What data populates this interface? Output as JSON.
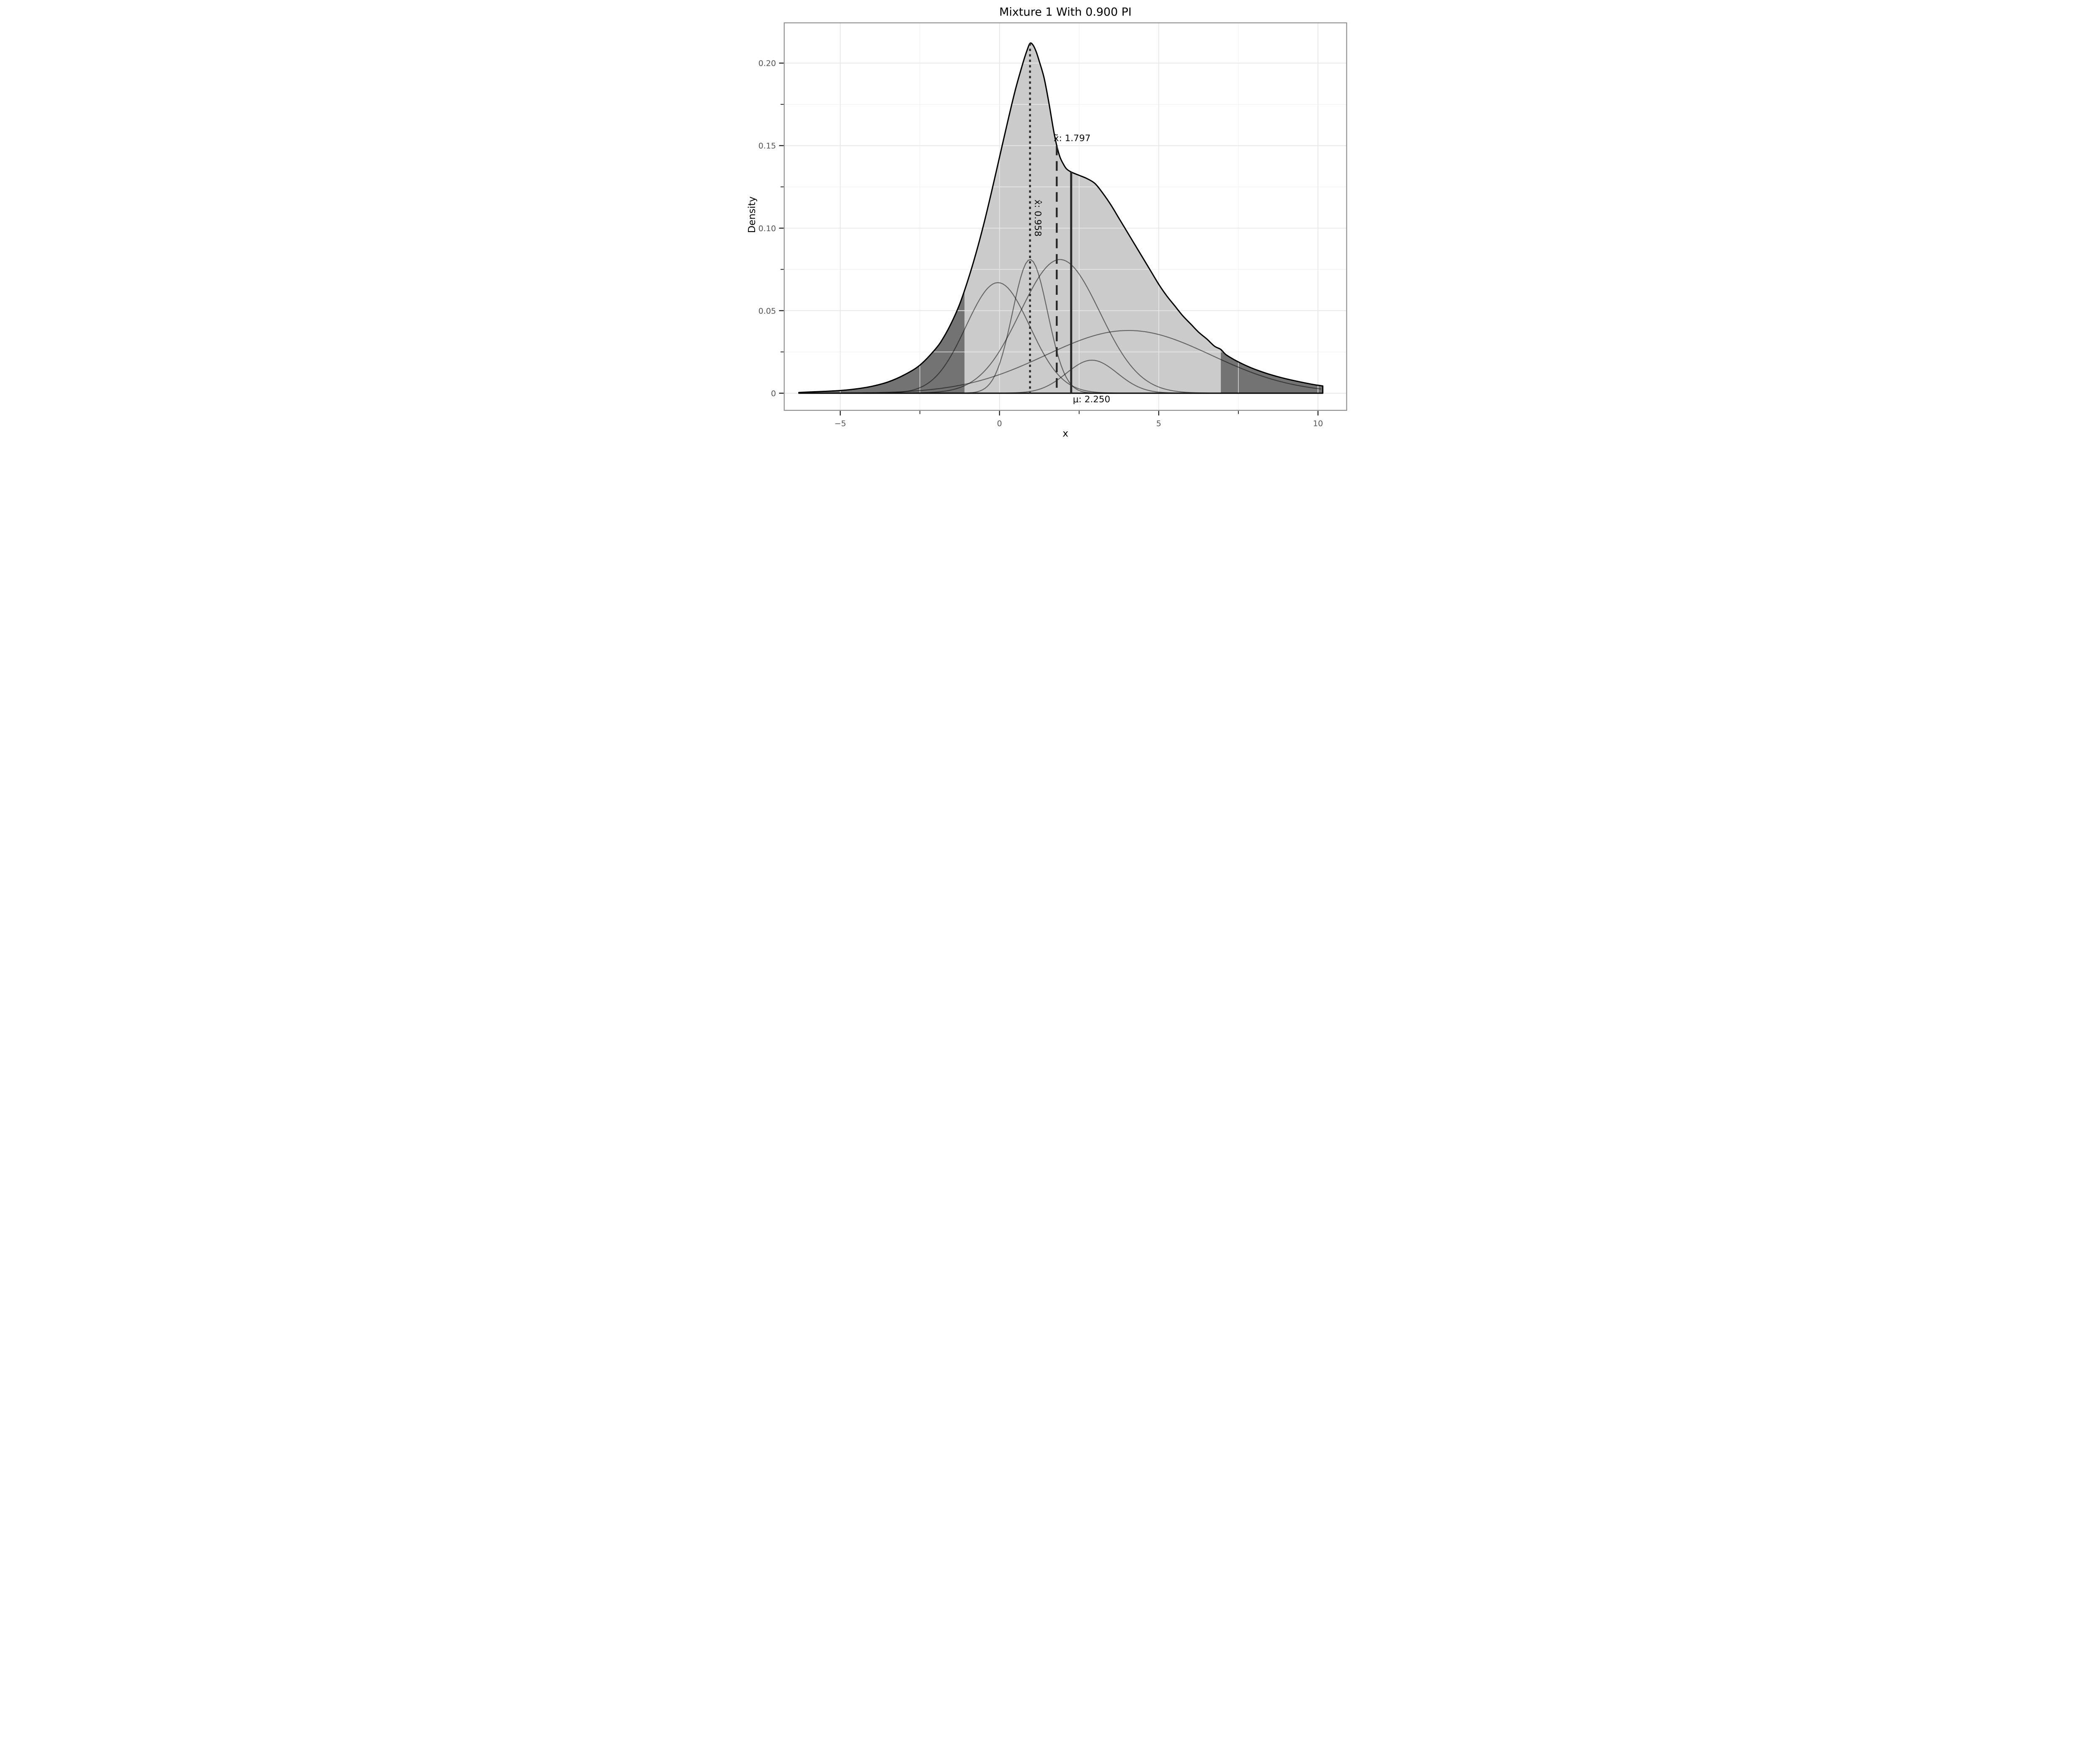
{
  "chart_data": {
    "type": "area",
    "title": "Mixture 1 With 0.900 PI",
    "xlabel": "x",
    "ylabel": "Density",
    "xlim": [
      -6.76,
      10.9
    ],
    "ylim": [
      -0.0104,
      0.2244
    ],
    "xticks": {
      "labels": [
        "−5",
        "0",
        "5",
        "10"
      ],
      "values": [
        -5,
        0,
        5,
        10
      ],
      "minor_values": [
        -2.5,
        2.5,
        7.5
      ]
    },
    "yticks": {
      "labels": [
        "0",
        "0.05",
        "0.10",
        "0.15",
        "0.20"
      ],
      "values": [
        0,
        0.05,
        0.1,
        0.15,
        0.2
      ],
      "minor_values": [
        0.025,
        0.075,
        0.125,
        0.175
      ]
    },
    "grid": {
      "major": true,
      "minor": true,
      "position": "above-fill"
    },
    "legend": "none",
    "density_curve": {
      "x": [
        -6.3,
        -6,
        -5.5,
        -5,
        -4.5,
        -4,
        -3.5,
        -3,
        -2.5,
        -2,
        -1.75,
        -1.5,
        -1.25,
        -1,
        -0.75,
        -0.5,
        -0.25,
        0,
        0.25,
        0.5,
        0.75,
        0.87,
        0.958,
        1.05,
        1.15,
        1.25,
        1.4,
        1.55,
        1.7,
        1.797,
        1.9,
        2,
        2.1,
        2.25,
        2.5,
        2.75,
        3,
        3.25,
        3.5,
        3.75,
        4,
        4.25,
        4.5,
        4.75,
        5,
        5.25,
        5.5,
        5.75,
        6,
        6.25,
        6.5,
        6.75,
        6.95,
        7.1,
        7.35,
        7.6,
        7.85,
        8.1,
        8.4,
        8.7,
        9,
        9.3,
        9.6,
        9.9,
        10.15
      ],
      "density": [
        0.0004,
        0.0007,
        0.0011,
        0.0016,
        0.0026,
        0.0042,
        0.0068,
        0.011,
        0.017,
        0.027,
        0.034,
        0.043,
        0.054,
        0.068,
        0.084,
        0.102,
        0.122,
        0.143,
        0.164,
        0.184,
        0.201,
        0.208,
        0.212,
        0.211,
        0.207,
        0.201,
        0.191,
        0.176,
        0.159,
        0.15,
        0.143,
        0.139,
        0.136,
        0.134,
        0.132,
        0.13,
        0.127,
        0.121,
        0.114,
        0.106,
        0.098,
        0.09,
        0.082,
        0.074,
        0.066,
        0.059,
        0.053,
        0.047,
        0.042,
        0.037,
        0.033,
        0.0285,
        0.0265,
        0.0235,
        0.0205,
        0.018,
        0.0158,
        0.0139,
        0.0119,
        0.0102,
        0.0087,
        0.0074,
        0.0062,
        0.0051,
        0.0044
      ]
    },
    "mixture_components": [
      {
        "mean": -0.05,
        "sd": 1.0,
        "peak_height": 0.067
      },
      {
        "mean": 0.96,
        "sd": 0.55,
        "peak_height": 0.081
      },
      {
        "mean": 1.9,
        "sd": 1.25,
        "peak_height": 0.081
      },
      {
        "mean": 2.9,
        "sd": 0.8,
        "peak_height": 0.02
      },
      {
        "mean": 4.05,
        "sd": 2.6,
        "peak_height": 0.038
      }
    ],
    "stat_lines": [
      {
        "name": "mode",
        "label": "x̂: 0.958",
        "x": 0.958,
        "line_style": "dotted",
        "label_rotation": 90
      },
      {
        "name": "median",
        "label": "x̃: 1.797",
        "x": 1.797,
        "line_style": "dashed",
        "label_rotation": 0
      },
      {
        "name": "mean",
        "label": "μ: 2.250",
        "x": 2.25,
        "line_style": "solid",
        "label_rotation": 0
      }
    ],
    "prediction_interval": {
      "level": 0.9,
      "lower": -1.1,
      "upper": 6.95
    },
    "colors": {
      "panel_bg": "#ffffff",
      "fill_pi": "#cbcbcb",
      "fill_tail": "#737373",
      "main_curve": "#000000",
      "component_curve": "rgba(0,0,0,0.5)",
      "stat_line": "#2b2b2b",
      "grid_major": "#e6e6e6",
      "grid_minor": "#f1f1f1",
      "panel_border": "#8f8f8f",
      "tick_mark": "#151515",
      "tick_label": "#555555",
      "text": "#000000"
    }
  }
}
